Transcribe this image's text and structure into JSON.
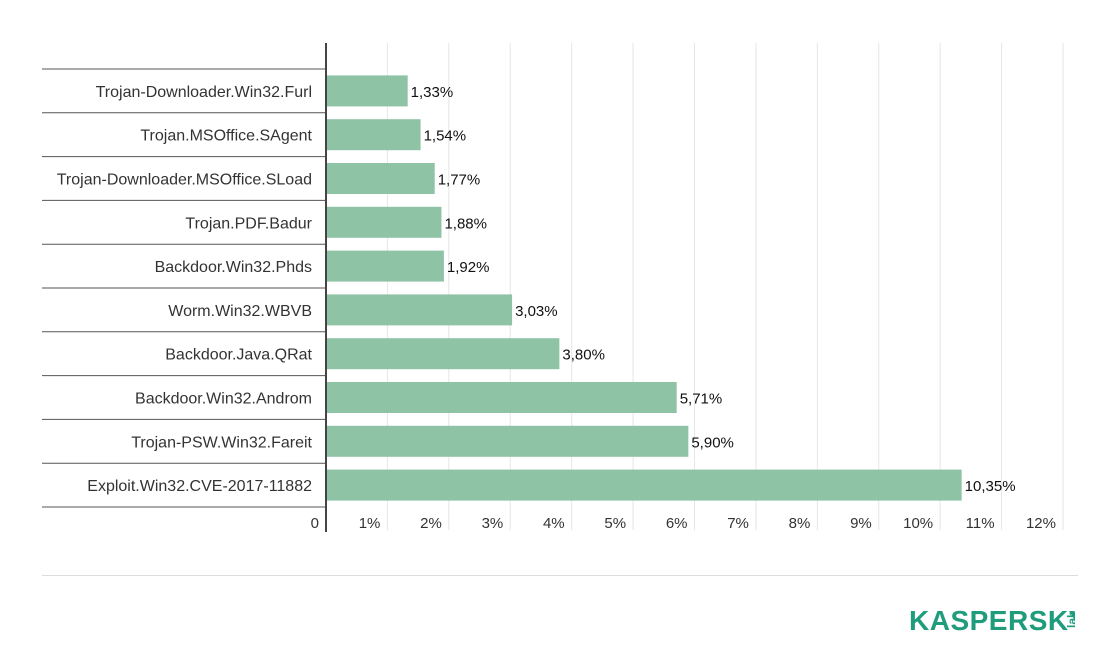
{
  "chart_data": {
    "type": "bar",
    "orientation": "horizontal",
    "categories": [
      "Trojan-Downloader.Win32.Furl",
      "Trojan.MSOffice.SAgent",
      "Trojan-Downloader.MSOffice.SLoad",
      "Trojan.PDF.Badur",
      "Backdoor.Win32.Phds",
      "Worm.Win32.WBVB",
      "Backdoor.Java.QRat",
      "Backdoor.Win32.Androm",
      "Trojan-PSW.Win32.Fareit",
      "Exploit.Win32.CVE-2017-11882"
    ],
    "values": [
      1.33,
      1.54,
      1.77,
      1.88,
      1.92,
      3.03,
      3.8,
      5.71,
      5.9,
      10.35
    ],
    "value_labels": [
      "1,33%",
      "1,54%",
      "1,77%",
      "1,88%",
      "1,92%",
      "3,03%",
      "3,80%",
      "5,71%",
      "5,90%",
      "10,35%"
    ],
    "x_ticks": [
      "0",
      "1%",
      "2%",
      "3%",
      "4%",
      "5%",
      "6%",
      "7%",
      "8%",
      "9%",
      "10%",
      "11%",
      "12%"
    ],
    "xlim": [
      0,
      12
    ],
    "grid": true,
    "bar_color": "#8fc3a6",
    "title": "",
    "xlabel": "",
    "ylabel": ""
  },
  "brand": {
    "logo_text": "KASPERSKY",
    "logo_sub": "lab",
    "logo_color": "#1f9c7c"
  }
}
